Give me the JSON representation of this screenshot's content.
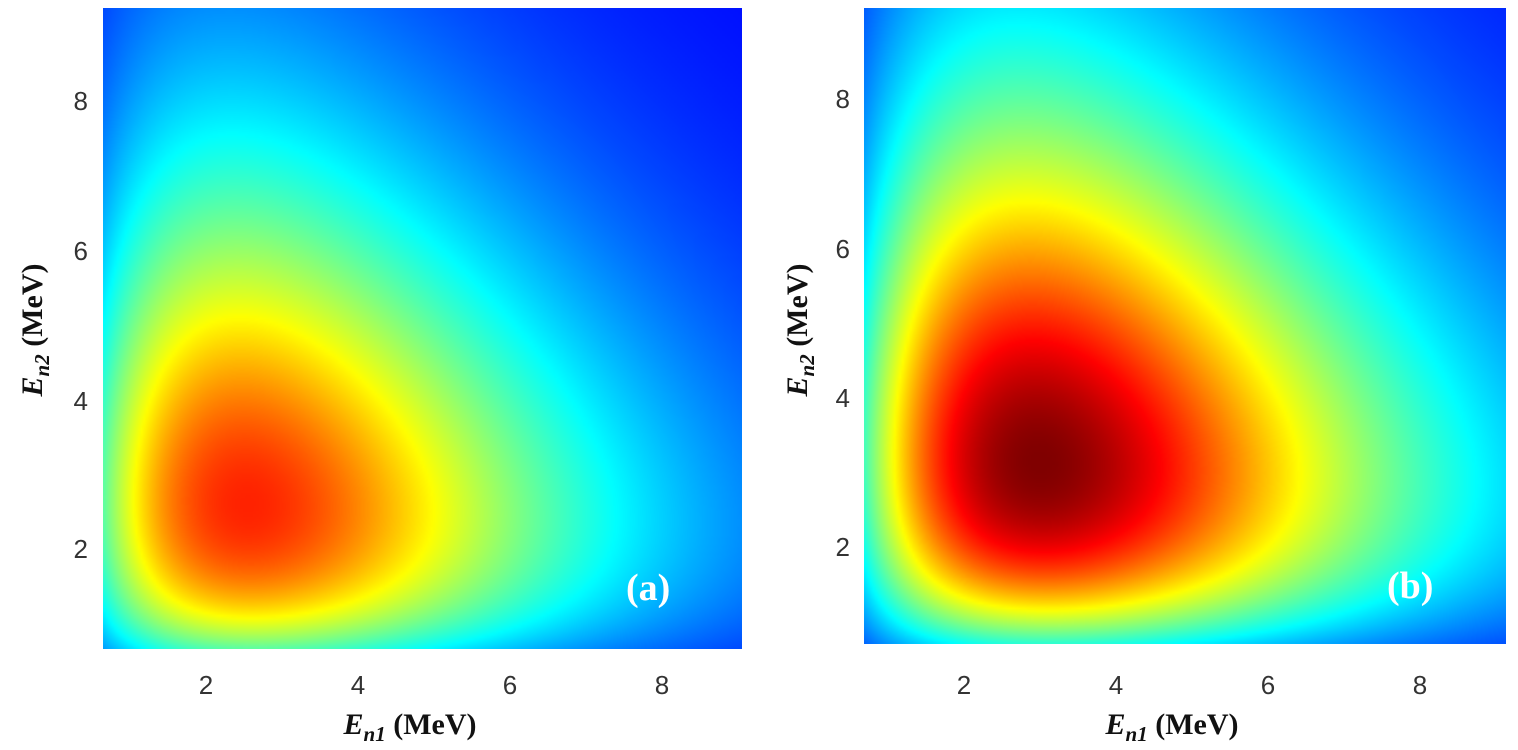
{
  "chart_data": [
    {
      "type": "heatmap",
      "panel_label": "(a)",
      "xlabel_main": "E",
      "xlabel_sub": "n1",
      "xlabel_unit": " (MeV)",
      "ylabel_main": "E",
      "ylabel_sub": "n2",
      "ylabel_unit": " (MeV)",
      "xlim": [
        0.7,
        9.1
      ],
      "ylim": [
        0.7,
        9.1
      ],
      "xticks": [
        2,
        4,
        6,
        8
      ],
      "yticks": [
        2,
        4,
        6,
        8
      ],
      "colormap": "jet",
      "peak": {
        "x": 2.6,
        "y": 2.6,
        "relative_intensity": 0.82
      },
      "grid": false
    },
    {
      "type": "heatmap",
      "panel_label": "(b)",
      "xlabel_main": "E",
      "xlabel_sub": "n1",
      "xlabel_unit": " (MeV)",
      "ylabel_main": "E",
      "ylabel_sub": "n2",
      "ylabel_unit": " (MeV)",
      "xlim": [
        0.7,
        9.1
      ],
      "ylim": [
        0.7,
        9.1
      ],
      "xticks": [
        2,
        4,
        6,
        8
      ],
      "yticks": [
        2,
        4,
        6,
        8
      ],
      "colormap": "jet",
      "peak": {
        "x": 3.0,
        "y": 3.1,
        "relative_intensity": 1.0
      },
      "grid": false
    }
  ]
}
